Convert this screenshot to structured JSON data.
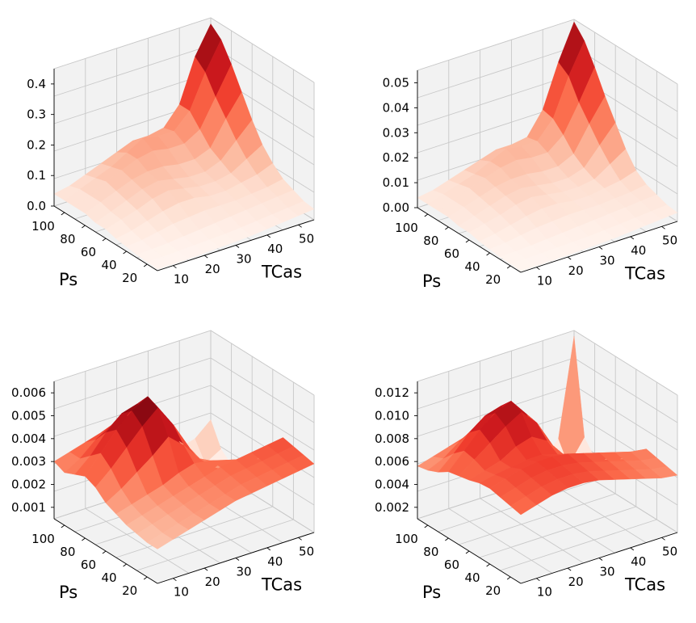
{
  "chart_data": [
    {
      "type": "surface3d",
      "xlabel": "TCas",
      "ylabel": "Ps",
      "xticks": [
        "10",
        "20",
        "30",
        "40",
        "50"
      ],
      "yticks": [
        "20",
        "40",
        "60",
        "80",
        "100"
      ],
      "zticks": [
        "0.0",
        "0.1",
        "0.2",
        "0.3",
        "0.4"
      ],
      "zlim": [
        0,
        0.45
      ],
      "colormap": "Reds",
      "grid": true,
      "tcas": [
        5,
        10,
        15,
        20,
        25,
        30,
        35,
        40,
        45,
        50,
        55
      ],
      "ps": [
        10,
        20,
        30,
        40,
        50,
        60,
        70,
        80,
        90,
        100,
        110
      ],
      "z": [
        [
          0.005,
          0.005,
          0.006,
          0.008,
          0.01,
          0.012,
          0.015,
          0.02,
          0.025,
          0.03,
          0.035
        ],
        [
          0.008,
          0.008,
          0.01,
          0.012,
          0.014,
          0.016,
          0.02,
          0.025,
          0.03,
          0.035,
          0.04
        ],
        [
          0.01,
          0.012,
          0.015,
          0.02,
          0.025,
          0.03,
          0.035,
          0.04,
          0.045,
          0.05,
          0.055
        ],
        [
          0.015,
          0.02,
          0.03,
          0.04,
          0.045,
          0.05,
          0.05,
          0.05,
          0.055,
          0.06,
          0.07
        ],
        [
          0.02,
          0.03,
          0.045,
          0.06,
          0.07,
          0.07,
          0.06,
          0.06,
          0.07,
          0.08,
          0.1
        ],
        [
          0.03,
          0.045,
          0.06,
          0.08,
          0.09,
          0.08,
          0.07,
          0.07,
          0.08,
          0.11,
          0.14
        ],
        [
          0.03,
          0.05,
          0.07,
          0.09,
          0.1,
          0.09,
          0.08,
          0.08,
          0.1,
          0.15,
          0.2
        ],
        [
          0.04,
          0.06,
          0.08,
          0.1,
          0.11,
          0.11,
          0.1,
          0.1,
          0.12,
          0.2,
          0.27
        ],
        [
          0.04,
          0.06,
          0.09,
          0.11,
          0.13,
          0.14,
          0.13,
          0.13,
          0.16,
          0.25,
          0.34
        ],
        [
          0.04,
          0.06,
          0.08,
          0.1,
          0.13,
          0.16,
          0.15,
          0.15,
          0.2,
          0.31,
          0.4
        ],
        [
          0.04,
          0.05,
          0.07,
          0.09,
          0.11,
          0.13,
          0.13,
          0.14,
          0.2,
          0.34,
          0.43
        ]
      ]
    },
    {
      "type": "surface3d",
      "xlabel": "TCas",
      "ylabel": "Ps",
      "xticks": [
        "10",
        "20",
        "30",
        "40",
        "50"
      ],
      "yticks": [
        "20",
        "40",
        "60",
        "80",
        "100"
      ],
      "zticks": [
        "0.00",
        "0.01",
        "0.02",
        "0.03",
        "0.04",
        "0.05"
      ],
      "zlim": [
        0,
        0.055
      ],
      "colormap": "Reds",
      "grid": true,
      "tcas": [
        5,
        10,
        15,
        20,
        25,
        30,
        35,
        40,
        45,
        50,
        55
      ],
      "ps": [
        10,
        20,
        30,
        40,
        50,
        60,
        70,
        80,
        90,
        100,
        110
      ],
      "z": [
        [
          0.0005,
          0.0005,
          0.0006,
          0.0008,
          0.001,
          0.0012,
          0.0015,
          0.002,
          0.0025,
          0.003,
          0.0035
        ],
        [
          0.0008,
          0.0008,
          0.001,
          0.0012,
          0.0014,
          0.0016,
          0.002,
          0.0025,
          0.003,
          0.0035,
          0.004
        ],
        [
          0.001,
          0.0012,
          0.0015,
          0.002,
          0.0025,
          0.003,
          0.0035,
          0.004,
          0.0045,
          0.005,
          0.0055
        ],
        [
          0.0015,
          0.002,
          0.003,
          0.004,
          0.0045,
          0.005,
          0.005,
          0.005,
          0.0055,
          0.006,
          0.007
        ],
        [
          0.002,
          0.003,
          0.0045,
          0.006,
          0.007,
          0.007,
          0.006,
          0.006,
          0.007,
          0.008,
          0.01
        ],
        [
          0.003,
          0.0045,
          0.006,
          0.008,
          0.009,
          0.008,
          0.007,
          0.007,
          0.008,
          0.012,
          0.016
        ],
        [
          0.003,
          0.005,
          0.007,
          0.009,
          0.01,
          0.009,
          0.008,
          0.008,
          0.01,
          0.017,
          0.024
        ],
        [
          0.004,
          0.006,
          0.008,
          0.01,
          0.011,
          0.011,
          0.01,
          0.01,
          0.013,
          0.023,
          0.032
        ],
        [
          0.004,
          0.006,
          0.009,
          0.011,
          0.013,
          0.014,
          0.013,
          0.013,
          0.018,
          0.029,
          0.041
        ],
        [
          0.004,
          0.006,
          0.008,
          0.01,
          0.013,
          0.016,
          0.015,
          0.015,
          0.022,
          0.037,
          0.049
        ],
        [
          0.004,
          0.005,
          0.007,
          0.009,
          0.011,
          0.013,
          0.013,
          0.014,
          0.023,
          0.04,
          0.054
        ]
      ]
    },
    {
      "type": "surface3d",
      "xlabel": "TCas",
      "ylabel": "Ps",
      "xticks": [
        "10",
        "20",
        "30",
        "40",
        "50"
      ],
      "yticks": [
        "20",
        "40",
        "60",
        "80",
        "100"
      ],
      "zticks": [
        "0.001",
        "0.002",
        "0.003",
        "0.004",
        "0.005",
        "0.006"
      ],
      "zlim": [
        0.0005,
        0.0065
      ],
      "colormap": "Reds",
      "grid": true,
      "tcas": [
        5,
        10,
        15,
        20,
        25,
        30,
        35,
        40,
        45,
        50,
        55
      ],
      "ps": [
        10,
        20,
        30,
        40,
        50,
        60,
        70,
        80,
        90,
        100,
        110
      ],
      "z": [
        [
          0.002,
          0.0022,
          0.0024,
          0.0026,
          0.0028,
          0.003,
          0.0031,
          0.0032,
          0.0033,
          0.0034,
          0.0035
        ],
        [
          0.002,
          0.0022,
          0.0024,
          0.0026,
          0.0028,
          0.003,
          0.0032,
          0.0033,
          0.0034,
          0.0035,
          0.0036
        ],
        [
          0.0021,
          0.0023,
          0.0025,
          0.0027,
          0.0029,
          0.0031,
          0.0033,
          0.0034,
          0.0035,
          0.0036,
          0.0037
        ],
        [
          0.0022,
          0.0024,
          0.0026,
          0.0028,
          0.003,
          0.0032,
          0.0034,
          0.0035,
          0.0036,
          0.0037,
          0.0038
        ],
        [
          0.0024,
          0.0026,
          0.0028,
          0.003,
          0.0033,
          0.0035,
          0.0034,
          0.0032,
          0.003,
          0.0028,
          0.0026
        ],
        [
          0.0026,
          0.003,
          0.0035,
          0.004,
          0.0046,
          0.004,
          0.0032,
          0.0026,
          0.0022,
          0.002,
          0.0019
        ],
        [
          0.003,
          0.0036,
          0.0043,
          0.005,
          0.0056,
          0.0046,
          0.0034,
          0.0024,
          0.0018,
          0.0015,
          0.0014
        ],
        [
          0.0032,
          0.004,
          0.0048,
          0.0054,
          0.0058,
          0.0048,
          0.0034,
          0.0022,
          0.0014,
          0.0011,
          0.0012
        ],
        [
          0.003,
          0.0036,
          0.0044,
          0.005,
          0.0052,
          0.0042,
          0.003,
          0.0018,
          0.0012,
          0.001,
          0.0012
        ],
        [
          0.0028,
          0.0032,
          0.0038,
          0.0042,
          0.0044,
          0.0036,
          0.0026,
          0.0016,
          0.0012,
          0.0012,
          0.0016
        ],
        [
          0.003,
          0.0032,
          0.0034,
          0.0036,
          0.0038,
          0.0032,
          0.0026,
          0.002,
          0.0018,
          0.002,
          0.0026
        ]
      ]
    },
    {
      "type": "surface3d",
      "xlabel": "TCas",
      "ylabel": "Ps",
      "xticks": [
        "10",
        "20",
        "30",
        "40",
        "50"
      ],
      "yticks": [
        "20",
        "40",
        "60",
        "80",
        "100"
      ],
      "zticks": [
        "0.002",
        "0.004",
        "0.006",
        "0.008",
        "0.010",
        "0.012"
      ],
      "zlim": [
        0.001,
        0.013
      ],
      "colormap": "Reds",
      "grid": true,
      "tcas": [
        5,
        10,
        15,
        20,
        25,
        30,
        35,
        40,
        45,
        50,
        55
      ],
      "ps": [
        10,
        20,
        30,
        40,
        50,
        60,
        70,
        80,
        90,
        100,
        110
      ],
      "z": [
        [
          0.007,
          0.0074,
          0.0078,
          0.008,
          0.008,
          0.0078,
          0.0074,
          0.007,
          0.0066,
          0.0062,
          0.006
        ],
        [
          0.0072,
          0.0076,
          0.008,
          0.0082,
          0.0082,
          0.008,
          0.0076,
          0.0072,
          0.0068,
          0.0064,
          0.0062
        ],
        [
          0.0074,
          0.0078,
          0.0082,
          0.0084,
          0.0084,
          0.0082,
          0.0078,
          0.0074,
          0.007,
          0.0066,
          0.0064
        ],
        [
          0.0076,
          0.008,
          0.0084,
          0.0086,
          0.0086,
          0.0084,
          0.008,
          0.0076,
          0.0072,
          0.0068,
          0.0066
        ],
        [
          0.0075,
          0.0078,
          0.008,
          0.0082,
          0.0082,
          0.0078,
          0.0072,
          0.0066,
          0.006,
          0.0056,
          0.0052
        ],
        [
          0.0072,
          0.0076,
          0.008,
          0.0088,
          0.0092,
          0.0084,
          0.0068,
          0.0054,
          0.0044,
          0.004,
          0.004
        ],
        [
          0.007,
          0.008,
          0.009,
          0.01,
          0.0108,
          0.0094,
          0.007,
          0.005,
          0.0036,
          0.003,
          0.0032
        ],
        [
          0.0068,
          0.0082,
          0.0096,
          0.0106,
          0.0112,
          0.0096,
          0.0068,
          0.0044,
          0.0028,
          0.0022,
          0.0028
        ],
        [
          0.0062,
          0.0074,
          0.0088,
          0.0098,
          0.0102,
          0.0088,
          0.006,
          0.0036,
          0.0022,
          0.002,
          0.003
        ],
        [
          0.0058,
          0.0064,
          0.0074,
          0.0082,
          0.0086,
          0.0074,
          0.005,
          0.003,
          0.002,
          0.0022,
          0.0042
        ],
        [
          0.0056,
          0.006,
          0.0064,
          0.0068,
          0.007,
          0.006,
          0.0044,
          0.003,
          0.0024,
          0.004,
          0.0125
        ]
      ]
    }
  ]
}
